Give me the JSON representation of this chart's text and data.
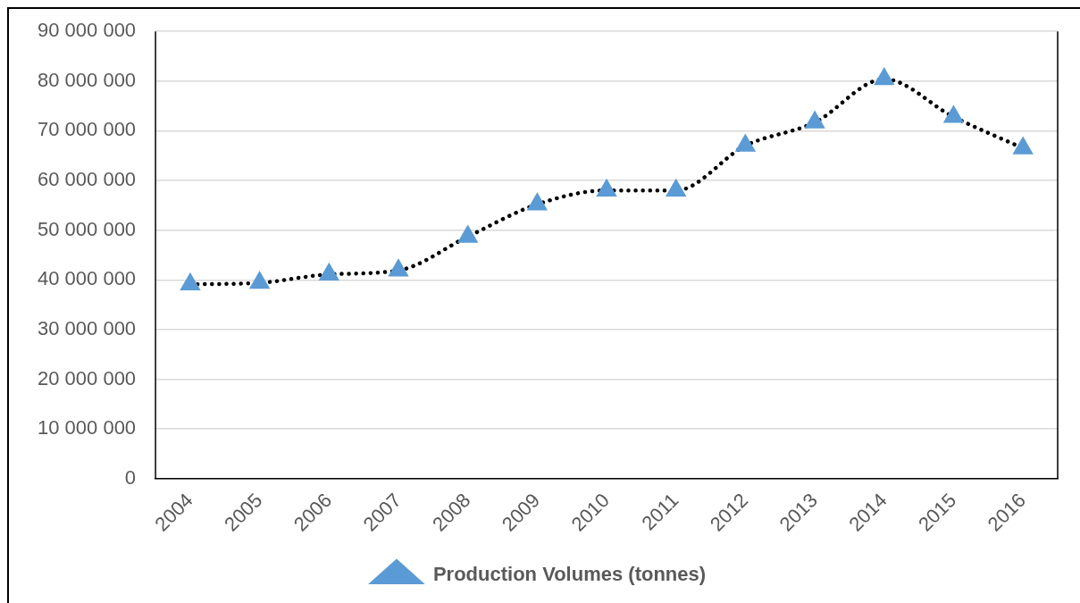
{
  "chart_data": {
    "type": "line",
    "categories": [
      "2004",
      "2005",
      "2006",
      "2007",
      "2008",
      "2009",
      "2010",
      "2011",
      "2012",
      "2013",
      "2014",
      "2015",
      "2016"
    ],
    "series": [
      {
        "name": "Production Volumes (tonnes)",
        "color": "#5b9bd5",
        "values": [
          39100000,
          39400000,
          41100000,
          41900000,
          48700000,
          55200000,
          58000000,
          58000000,
          67000000,
          71700000,
          80400000,
          72800000,
          66500000
        ]
      }
    ],
    "ylim": [
      0,
      90000000
    ],
    "yticks": [
      {
        "value": 0,
        "label": "0"
      },
      {
        "value": 10000000,
        "label": "10 000 000"
      },
      {
        "value": 20000000,
        "label": "20 000 000"
      },
      {
        "value": 30000000,
        "label": "30 000 000"
      },
      {
        "value": 40000000,
        "label": "40 000 000"
      },
      {
        "value": 50000000,
        "label": "50 000 000"
      },
      {
        "value": 60000000,
        "label": "60 000 000"
      },
      {
        "value": 70000000,
        "label": "70 000 000"
      },
      {
        "value": 80000000,
        "label": "80 000 000"
      },
      {
        "value": 90000000,
        "label": "90 000 000"
      }
    ],
    "grid": "y",
    "legend": "bottom",
    "marker": "triangle",
    "line_style": "dotted"
  }
}
